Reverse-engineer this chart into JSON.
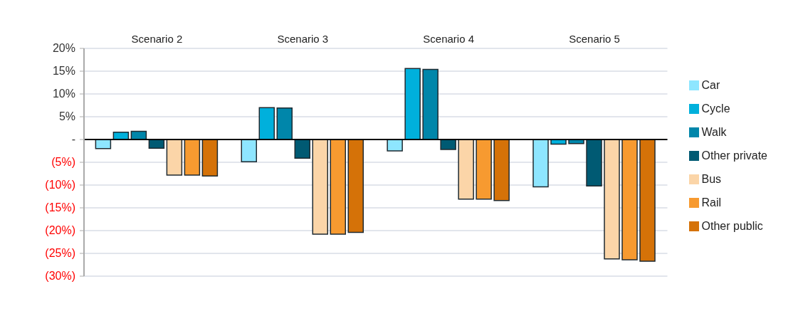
{
  "chart_data": {
    "type": "bar",
    "categories": [
      "Scenario 2",
      "Scenario 3",
      "Scenario 4",
      "Scenario 5"
    ],
    "series": [
      {
        "name": "Car",
        "color": "#8ee6ff",
        "values": [
          -2.0,
          -4.9,
          -2.5,
          -10.4
        ]
      },
      {
        "name": "Cycle",
        "color": "#00b0dc",
        "values": [
          1.6,
          7.0,
          15.6,
          -1.0
        ]
      },
      {
        "name": "Walk",
        "color": "#0086aa",
        "values": [
          1.8,
          6.9,
          15.4,
          -0.9
        ]
      },
      {
        "name": "Other private",
        "color": "#005a73",
        "values": [
          -1.9,
          -4.1,
          -2.2,
          -10.2
        ]
      },
      {
        "name": "Bus",
        "color": "#fbd5a8",
        "values": [
          -7.8,
          -20.8,
          -13.1,
          -26.2
        ]
      },
      {
        "name": "Rail",
        "color": "#f79a30",
        "values": [
          -7.8,
          -20.8,
          -13.1,
          -26.4
        ]
      },
      {
        "name": "Other public",
        "color": "#d57208",
        "values": [
          -8.0,
          -20.4,
          -13.4,
          -26.7
        ]
      }
    ],
    "ylim": [
      -30,
      20
    ],
    "yticks": [
      {
        "value": 20,
        "label": "20%"
      },
      {
        "value": 15,
        "label": "15%"
      },
      {
        "value": 10,
        "label": "10%"
      },
      {
        "value": 5,
        "label": "5%"
      },
      {
        "value": 0,
        "label": "-"
      },
      {
        "value": -5,
        "label": "(5%)"
      },
      {
        "value": -10,
        "label": "(10%)"
      },
      {
        "value": -15,
        "label": "(15%)"
      },
      {
        "value": -20,
        "label": "(20%)"
      },
      {
        "value": -25,
        "label": "(25%)"
      },
      {
        "value": -30,
        "label": "(30%)"
      }
    ],
    "grid": "y",
    "legend": "right"
  }
}
